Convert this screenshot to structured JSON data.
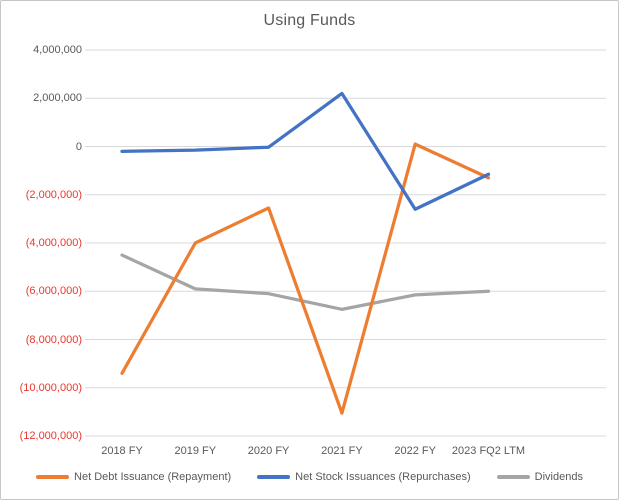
{
  "title": "Using Funds",
  "colors": {
    "series_orange": "#ED7D31",
    "series_blue": "#4472C4",
    "series_gray": "#A5A5A5",
    "axis_text": "#595959",
    "negative_text": "#E8392F",
    "gridline": "#D9D9D9",
    "chart_border": "#C6C6C6",
    "background": "#FFFFFF"
  },
  "y_axis": {
    "ticks": [
      {
        "value": 4000000,
        "label": "4,000,000"
      },
      {
        "value": 2000000,
        "label": "2,000,000"
      },
      {
        "value": 0,
        "label": "0"
      },
      {
        "value": -2000000,
        "label": "(2,000,000)"
      },
      {
        "value": -4000000,
        "label": "(4,000,000)"
      },
      {
        "value": -6000000,
        "label": "(6,000,000)"
      },
      {
        "value": -8000000,
        "label": "(8,000,000)"
      },
      {
        "value": -10000000,
        "label": "(10,000,000)"
      },
      {
        "value": -12000000,
        "label": "(12,000,000)"
      }
    ]
  },
  "chart_data": {
    "type": "line",
    "title": "Using Funds",
    "categories": [
      "2018 FY",
      "2019 FY",
      "2020 FY",
      "2021 FY",
      "2022 FY",
      "2023 FQ2 LTM"
    ],
    "series": [
      {
        "name": "Net Debt Issuance (Repayment)",
        "color": "#ED7D31",
        "values": [
          -9400000,
          -4000000,
          -2550000,
          -11050000,
          100000,
          -1300000
        ]
      },
      {
        "name": "Net Stock Issuances (Repurchases)",
        "color": "#4472C4",
        "values": [
          -200000,
          -150000,
          -30000,
          2200000,
          -2600000,
          -1150000
        ]
      },
      {
        "name": "Dividends",
        "color": "#A5A5A5",
        "values": [
          -4500000,
          -5900000,
          -6100000,
          -6750000,
          -6150000,
          -6000000
        ]
      }
    ],
    "ylim": [
      -12000000,
      4000000
    ],
    "ytick_step": 2000000,
    "grid": true,
    "legend_position": "bottom",
    "negative_label_style": "red-parentheses"
  }
}
